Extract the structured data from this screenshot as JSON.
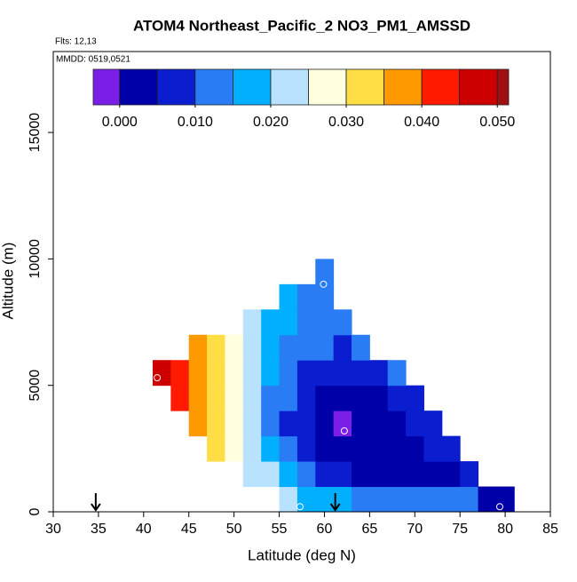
{
  "chart_data": {
    "type": "heatmap",
    "title": "ATOM4 Northeast_Pacific_2 NO3_PM1_AMSSD",
    "annotations": [
      "Flts: 12,13",
      "MMDD: 0519,0521"
    ],
    "x_label": "Latitude (deg N)",
    "y_label": "Altitude (m)",
    "xlim": [
      30,
      85
    ],
    "xticks": [
      30,
      35,
      40,
      45,
      50,
      55,
      60,
      65,
      70,
      75,
      80,
      85
    ],
    "ylim": [
      0,
      18200
    ],
    "yticks": [
      0,
      5000,
      10000,
      15000
    ],
    "x": [
      42,
      44,
      46,
      48,
      50,
      52,
      54,
      56,
      58,
      60,
      62,
      64,
      66,
      68,
      70,
      72,
      74,
      76,
      78,
      80
    ],
    "y": [
      500,
      1500,
      2500,
      3500,
      4500,
      5500,
      6500,
      7500,
      8500,
      9500
    ],
    "values": [
      [
        null,
        null,
        null,
        null,
        null,
        null,
        null,
        0.02,
        0.018,
        0.016,
        0.015,
        0.014,
        0.013,
        0.013,
        0.012,
        0.012,
        0.011,
        0.01,
        0.004,
        0.003
      ],
      [
        null,
        null,
        null,
        null,
        null,
        0.022,
        0.02,
        0.016,
        0.01,
        0.006,
        0.005,
        0.004,
        0.004,
        0.004,
        0.004,
        0.004,
        0.004,
        0.005,
        null,
        null
      ],
      [
        null,
        null,
        null,
        0.032,
        0.026,
        0.022,
        0.016,
        0.01,
        0.005,
        0.003,
        0.0,
        0.001,
        0.002,
        0.003,
        0.004,
        0.005,
        0.006,
        null,
        null,
        null
      ],
      [
        null,
        null,
        0.037,
        0.034,
        0.027,
        0.02,
        0.014,
        0.009,
        0.005,
        0.003,
        -0.002,
        0.001,
        0.003,
        0.004,
        0.006,
        0.008,
        null,
        null,
        null,
        null
      ],
      [
        null,
        0.042,
        0.038,
        0.034,
        0.027,
        0.02,
        0.014,
        0.01,
        0.006,
        0.004,
        0.002,
        0.003,
        0.004,
        0.006,
        0.009,
        null,
        null,
        null,
        null,
        null
      ],
      [
        0.048,
        0.042,
        0.038,
        0.034,
        0.027,
        0.021,
        0.015,
        0.011,
        0.008,
        0.006,
        0.005,
        0.006,
        0.008,
        0.011,
        null,
        null,
        null,
        null,
        null,
        null
      ],
      [
        null,
        null,
        0.037,
        0.033,
        0.028,
        0.021,
        0.016,
        0.013,
        0.011,
        0.01,
        0.009,
        0.011,
        null,
        null,
        null,
        null,
        null,
        null,
        null,
        null
      ],
      [
        null,
        null,
        null,
        null,
        null,
        0.022,
        0.018,
        0.015,
        0.013,
        0.013,
        0.012,
        null,
        null,
        null,
        null,
        null,
        null,
        null,
        null,
        null
      ],
      [
        null,
        null,
        null,
        null,
        null,
        null,
        null,
        0.017,
        0.014,
        0.013,
        null,
        null,
        null,
        null,
        null,
        null,
        null,
        null,
        null,
        null
      ],
      [
        null,
        null,
        null,
        null,
        null,
        null,
        null,
        null,
        null,
        0.012,
        null,
        null,
        null,
        null,
        null,
        null,
        null,
        null,
        null,
        null
      ]
    ],
    "colorbar": {
      "breaks": [
        -0.0035,
        0,
        0.005,
        0.01,
        0.015,
        0.02,
        0.025,
        0.03,
        0.035,
        0.04,
        0.045,
        0.05,
        0.0515
      ],
      "colors": [
        "#7a1ee8",
        "#0000a8",
        "#0a1ed0",
        "#2a7cf5",
        "#00b0ff",
        "#b8e2ff",
        "#ffffe0",
        "#ffdd44",
        "#ff9900",
        "#ff1a00",
        "#cc0000",
        "#a01010"
      ],
      "ticks": [
        {
          "value": 0,
          "label": "0.000"
        },
        {
          "value": 0.01,
          "label": "0.010"
        },
        {
          "value": 0.02,
          "label": "0.020"
        },
        {
          "value": 0.03,
          "label": "0.030"
        },
        {
          "value": 0.04,
          "label": "0.040"
        },
        {
          "value": 0.05,
          "label": "0.050"
        }
      ]
    },
    "points": {
      "x": [
        41.5,
        59.9,
        62.2,
        57.3,
        79.4
      ],
      "y": [
        5300,
        9000,
        3200,
        200,
        200
      ]
    },
    "arrows": [
      34.7,
      61.2
    ]
  }
}
